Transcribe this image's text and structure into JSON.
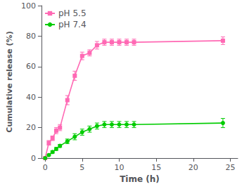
{
  "chart_data": {
    "type": "line",
    "xlabel": "Time (h)",
    "ylabel": "Cumulative release (%)",
    "x": [
      0,
      0.5,
      1,
      1.5,
      2,
      3,
      4,
      5,
      6,
      7,
      8,
      9,
      10,
      11,
      12,
      24
    ],
    "series": [
      {
        "name": "pH 5.5",
        "color": "#FF69B4",
        "marker": "square",
        "values": [
          0,
          10,
          13,
          18,
          20,
          38,
          54,
          67,
          69,
          74,
          76,
          76,
          76,
          76,
          76,
          77
        ],
        "errors": [
          0,
          1.5,
          1.5,
          2.0,
          2.0,
          3.0,
          3.0,
          2.5,
          2.0,
          2.5,
          2.0,
          2.0,
          2.0,
          2.0,
          2.0,
          2.5
        ]
      },
      {
        "name": "pH 7.4",
        "color": "#00CC00",
        "marker": "circle",
        "values": [
          0,
          2,
          4,
          6,
          8,
          11,
          14,
          17,
          19,
          21,
          22,
          22,
          22,
          22,
          22,
          23
        ],
        "errors": [
          0,
          0.5,
          0.8,
          1.0,
          1.0,
          1.5,
          2.0,
          2.0,
          2.0,
          2.0,
          2.0,
          2.0,
          2.0,
          2.0,
          2.0,
          3.0
        ]
      }
    ],
    "xlim": [
      -0.5,
      26
    ],
    "ylim": [
      0,
      100
    ],
    "xticks": [
      0,
      5,
      10,
      15,
      20,
      25
    ],
    "yticks": [
      0,
      20,
      40,
      60,
      80,
      100
    ],
    "grid": false,
    "legend": "upper left"
  }
}
